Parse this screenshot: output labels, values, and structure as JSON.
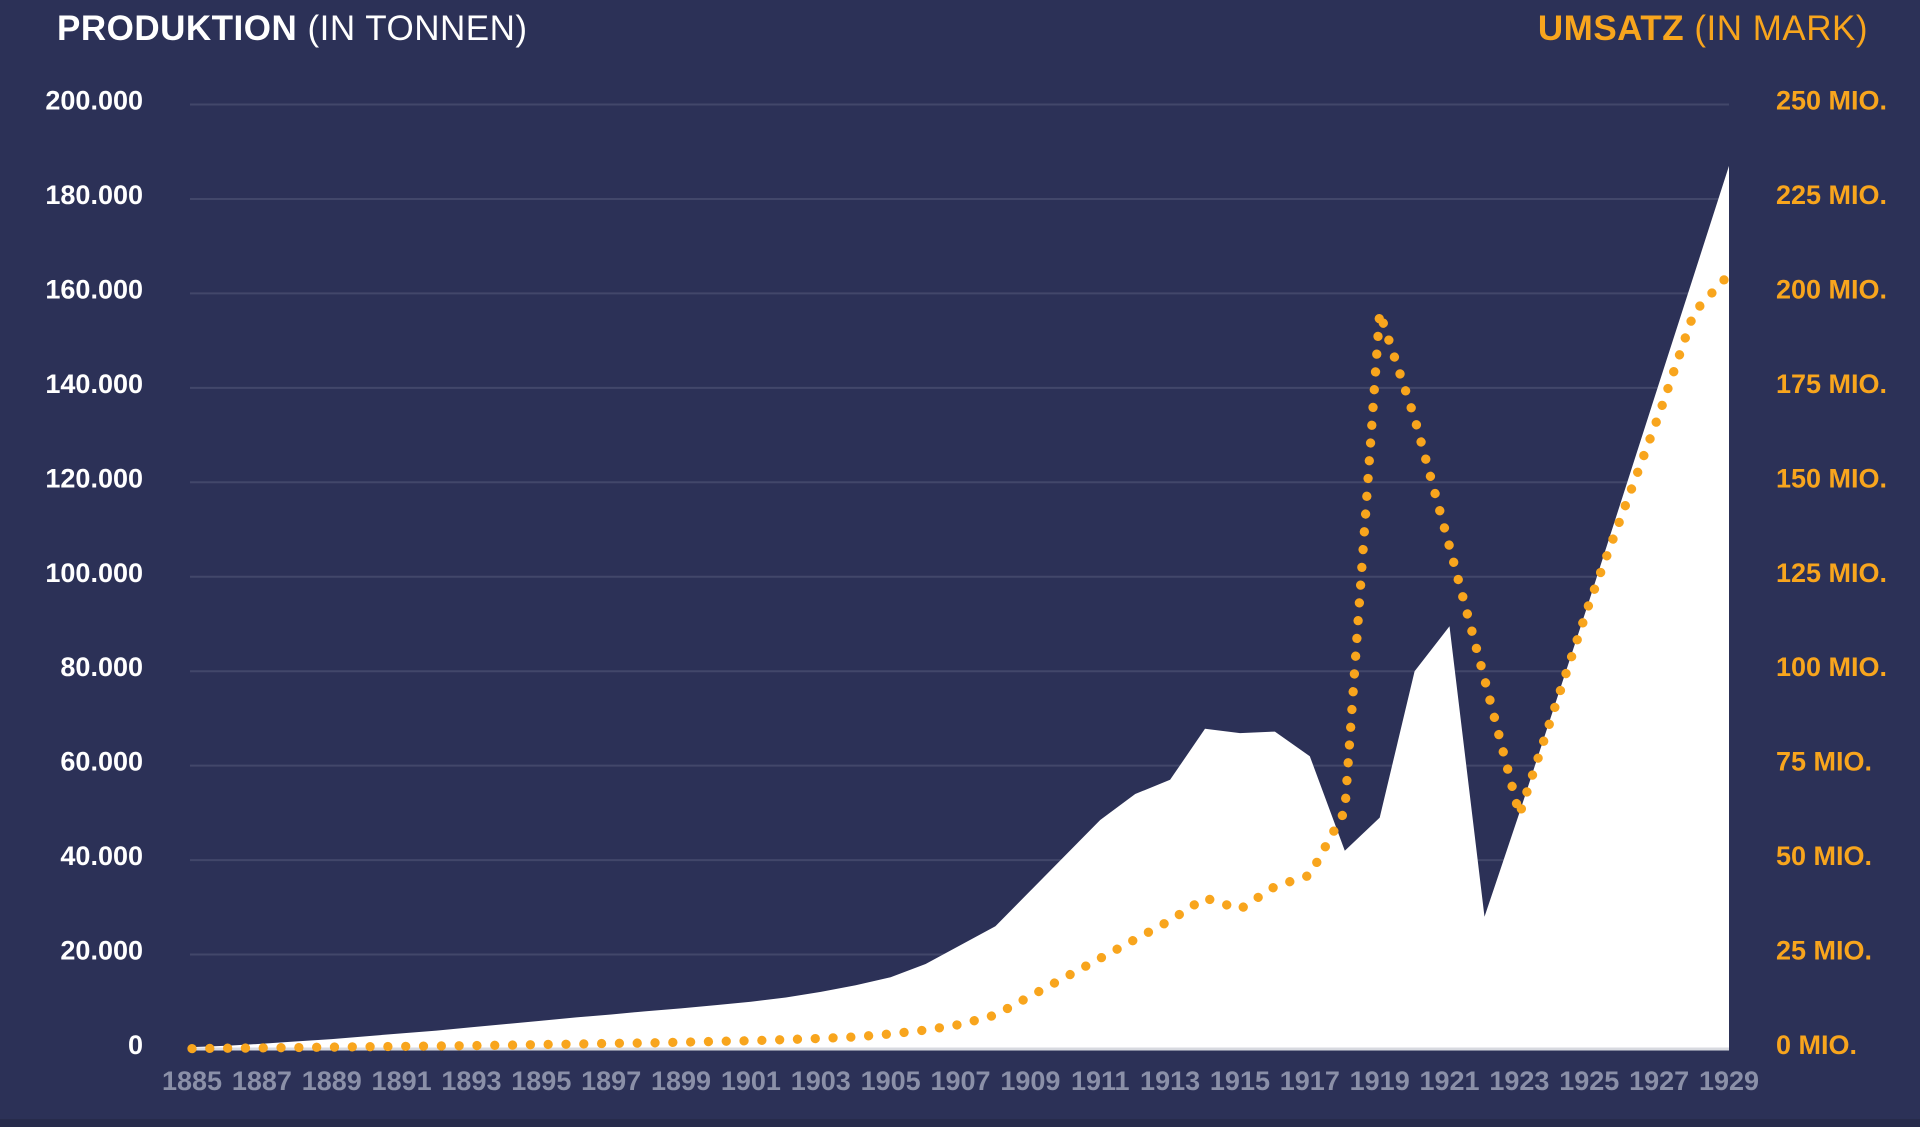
{
  "titles": {
    "left_bold": "PRODUKTION",
    "left_regular": " (IN TONNEN)",
    "right_bold": "UMSATZ",
    "right_regular": " (IN MARK)"
  },
  "colors": {
    "background": "#2c3157",
    "footer_band": "#272b4b",
    "area_fill": "#ffffff",
    "dotted_line": "#f8a51d",
    "grid_line": "rgba(175,181,201,0.17)",
    "baseline": "#d8dae0",
    "left_tick_label": "#ffffff",
    "right_tick_label": "#f8a51d",
    "year_tick_label": "#8b90a8",
    "title_left_color": "#ffffff",
    "title_right_color": "#f8a51d"
  },
  "axes": {
    "left_ticks": [
      "200.000",
      "180.000",
      "160.000",
      "140.000",
      "120.000",
      "100.000",
      "80.000",
      "60.000",
      "40.000",
      "20.000",
      "0"
    ],
    "right_ticks": [
      "250 MIO.",
      "225 MIO.",
      "200 MIO.",
      "175 MIO.",
      "150 MIO.",
      "125 MIO.",
      "100 MIO.",
      "75 MIO.",
      "50 MIO.",
      "25 MIO.",
      "0 MIO."
    ],
    "x_ticks": [
      "1885",
      "1887",
      "1889",
      "1891",
      "1893",
      "1895",
      "1897",
      "1899",
      "1901",
      "1903",
      "1905",
      "1907",
      "1909",
      "1911",
      "1913",
      "1915",
      "1917",
      "1919",
      "1921",
      "1923",
      "1925",
      "1927",
      "1929"
    ]
  },
  "chart_data": {
    "type": "area",
    "title": "PRODUKTION (IN TONNEN) / UMSATZ (IN MARK)",
    "x": [
      1885,
      1886,
      1887,
      1888,
      1889,
      1890,
      1891,
      1892,
      1893,
      1894,
      1895,
      1896,
      1897,
      1898,
      1899,
      1900,
      1901,
      1902,
      1903,
      1904,
      1905,
      1906,
      1907,
      1908,
      1909,
      1910,
      1911,
      1912,
      1913,
      1914,
      1915,
      1916,
      1917,
      1918,
      1919,
      1920,
      1921,
      1922,
      1923,
      1924,
      1925,
      1926,
      1927,
      1928,
      1929
    ],
    "series": [
      {
        "name": "Produktion",
        "unit": "Tonnen",
        "axis": "left",
        "style": "white-filled-area",
        "values": [
          400,
          700,
          1100,
          1600,
          2100,
          2700,
          3300,
          3900,
          4600,
          5300,
          6000,
          6700,
          7300,
          8000,
          8600,
          9300,
          10000,
          10900,
          12100,
          13500,
          15200,
          18000,
          22000,
          26000,
          33500,
          41000,
          48500,
          54000,
          57000,
          67800,
          66900,
          67200,
          62000,
          42000,
          49000,
          80000,
          89500,
          28000,
          50000,
          72500,
          95000,
          118000,
          141000,
          164000,
          187000
        ]
      },
      {
        "name": "Umsatz",
        "unit": "Mio. Mark",
        "axis": "right",
        "style": "orange-dotted-line",
        "values": [
          0.1,
          0.2,
          0.3,
          0.4,
          0.5,
          0.6,
          0.7,
          0.8,
          0.9,
          1.0,
          1.2,
          1.3,
          1.5,
          1.6,
          1.8,
          2.0,
          2.2,
          2.5,
          2.8,
          3.2,
          4,
          5,
          6.5,
          9,
          14,
          19,
          24,
          29,
          34,
          40,
          37,
          43,
          46,
          63,
          195,
          167,
          133,
          98,
          62,
          90,
          118,
          143,
          168,
          195,
          205
        ]
      }
    ],
    "left_axis": {
      "label": "PRODUKTION (IN TONNEN)",
      "min": 0,
      "max": 200000,
      "step": 20000
    },
    "right_axis": {
      "label": "UMSATZ (IN MARK)",
      "min": 0,
      "max": 250,
      "step": 25,
      "unit": "MIO."
    },
    "x_axis": {
      "min": 1885,
      "max": 1929,
      "tick_step": 2
    },
    "grid": true,
    "legend": false
  }
}
